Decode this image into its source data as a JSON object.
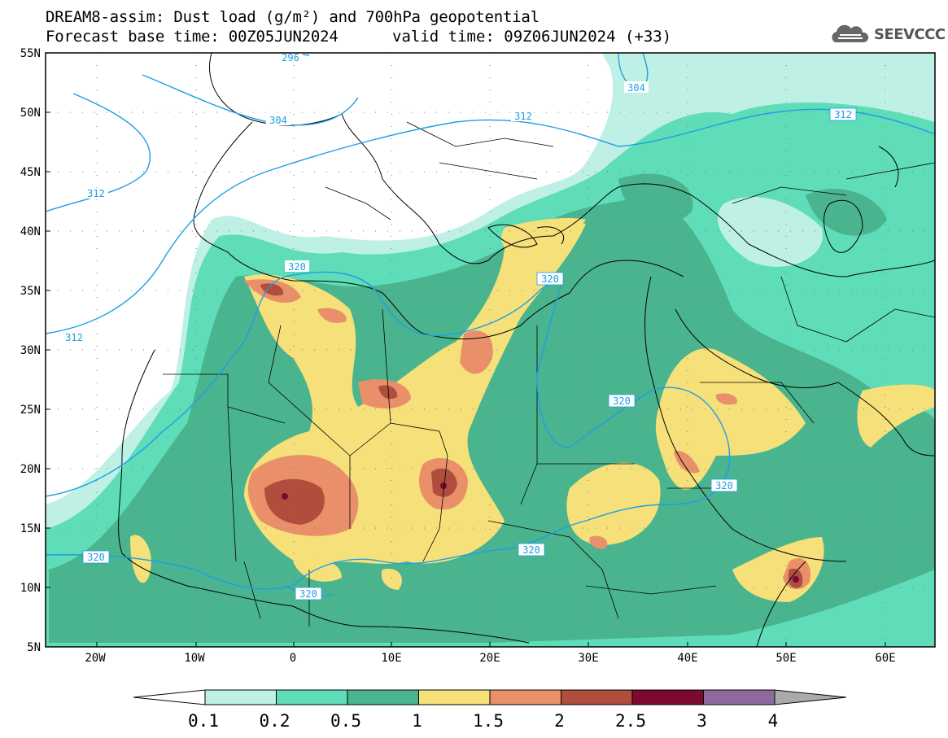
{
  "header": {
    "line1": "DREAM8-assim: Dust load (g/m²) and 700hPa geopotential",
    "line2_left": "Forecast base time: 00Z05JUN2024",
    "line2_right": "valid time: 09Z06JUN2024 (+33)"
  },
  "logo": {
    "text": "SEEVCCC",
    "icon": "cloud-icon"
  },
  "axes": {
    "lat_labels": [
      "55N",
      "50N",
      "45N",
      "40N",
      "35N",
      "30N",
      "25N",
      "20N",
      "15N",
      "10N",
      "5N"
    ],
    "lon_labels": [
      "20W",
      "10W",
      "0",
      "10E",
      "20E",
      "30E",
      "40E",
      "50E",
      "60E"
    ]
  },
  "contours": {
    "labels": [
      "296",
      "304",
      "312",
      "312",
      "312",
      "304",
      "312",
      "320",
      "320",
      "320",
      "320",
      "320",
      "320",
      "320"
    ]
  },
  "colorbar": {
    "levels": [
      "0.1",
      "0.2",
      "0.5",
      "1",
      "1.5",
      "2",
      "2.5",
      "3",
      "4"
    ],
    "colors": [
      "#bff0e6",
      "#5fdcb8",
      "#4ab48e",
      "#f5e07a",
      "#e9906a",
      "#b04d3c",
      "#7d0a2e",
      "#8e6a9c",
      "#aaaaaa"
    ]
  }
}
